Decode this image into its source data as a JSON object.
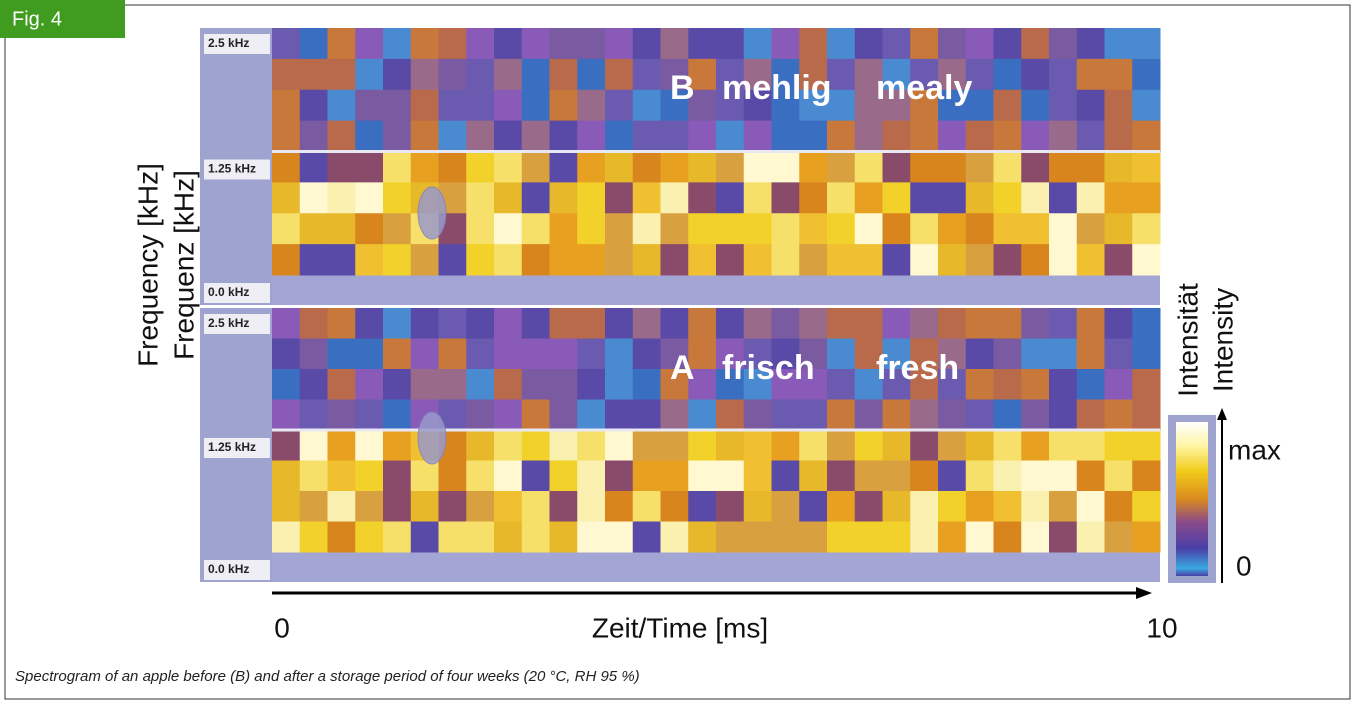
{
  "figure_label": "Fig. 4",
  "panels": [
    {
      "overlay": [
        "B",
        "mehlig",
        "mealy"
      ],
      "ticks": [
        "2.5 kHz",
        "1.25 kHz",
        "0.0 kHz"
      ]
    },
    {
      "overlay": [
        "A",
        "frisch",
        "fresh"
      ],
      "ticks": [
        "2.5 kHz",
        "1.25 kHz",
        "0.0 kHz"
      ]
    }
  ],
  "y_axis_labels": [
    "Frequency [kHz]",
    "Frequenz [kHz]"
  ],
  "x_axis": {
    "label": "Zeit/Time [ms]",
    "start": "0",
    "end": "10"
  },
  "colorbar": {
    "labels": [
      "Intensität",
      "Intensity"
    ],
    "max": "max",
    "min": "0"
  },
  "caption": "Spectrogram of an apple before (B) and after a storage period of four weeks (20 °C, RH 95 %)"
}
